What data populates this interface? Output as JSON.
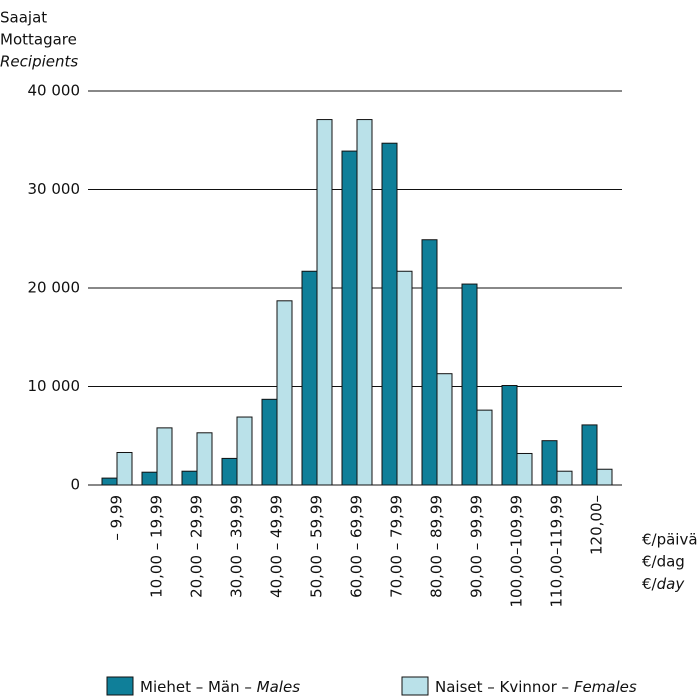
{
  "chart_data": {
    "type": "bar",
    "y_label": [
      "Saajat",
      "Mottagare",
      "Recipients"
    ],
    "x_unit": [
      "€/päivä",
      "€/dag",
      "€/day"
    ],
    "categories": [
      "– 9,99",
      "10,00 – 19,99",
      "20,00 – 29,99",
      "30,00 – 39,99",
      "40,00 – 49,99",
      "50,00 – 59,99",
      "60,00 – 69,99",
      "70,00 – 79,99",
      "80,00 – 89,99",
      "90,00 – 99,99",
      "100,00–109,99",
      "110,00–119,99",
      "120,00–"
    ],
    "series": [
      {
        "name": "Miehet – Män – Males",
        "color": "#0f7f99",
        "values": [
          700,
          1300,
          1400,
          2700,
          8700,
          21700,
          33900,
          34700,
          24900,
          20400,
          10100,
          4500,
          6100
        ]
      },
      {
        "name": "Naiset – Kvinnor – Females",
        "color": "#bae1e9",
        "values": [
          3300,
          5800,
          5300,
          6900,
          18700,
          37100,
          37100,
          21700,
          11300,
          7600,
          3200,
          1400,
          1600
        ]
      }
    ],
    "ylim": [
      0,
      40000
    ],
    "yticks": [
      0,
      {
        "value": 10000,
        "label": "10 000"
      },
      {
        "value": 20000,
        "label": "20 000"
      },
      {
        "value": 30000,
        "label": "30 000"
      },
      {
        "value": 40000,
        "label": "40 000"
      }
    ],
    "grid": true
  }
}
